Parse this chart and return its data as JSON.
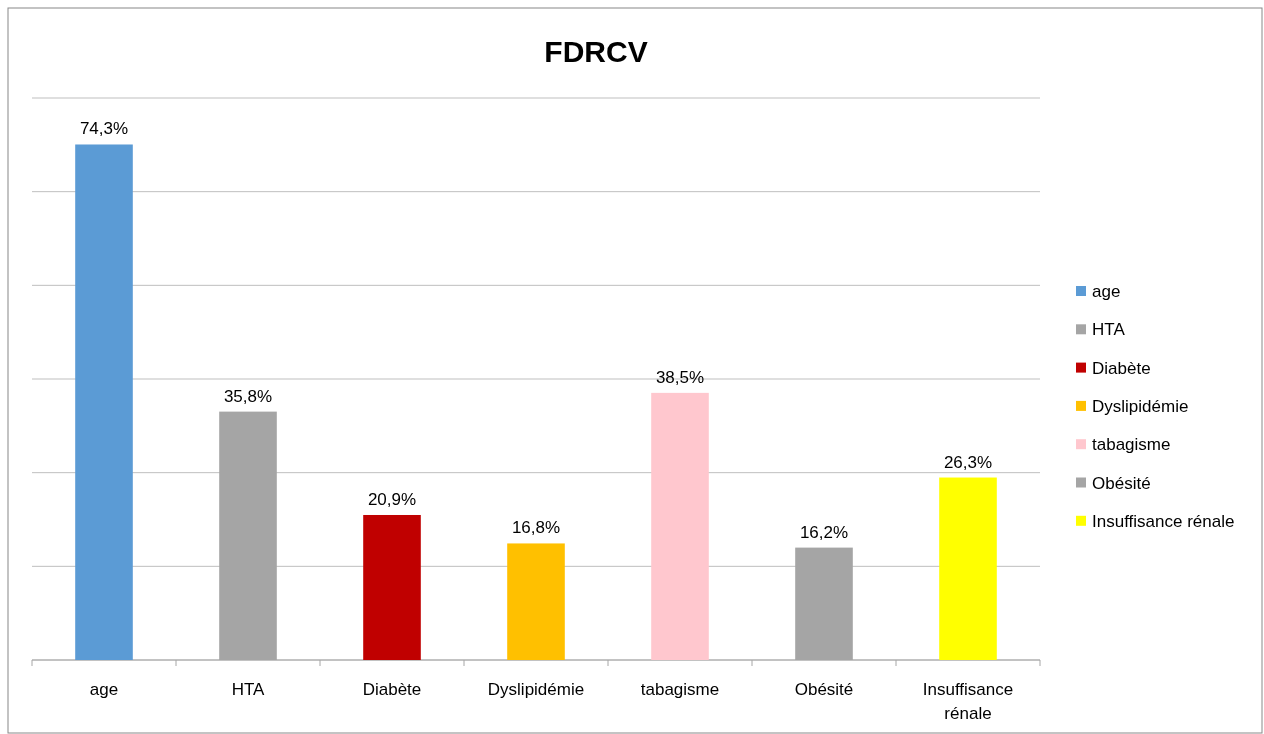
{
  "chart_data": {
    "type": "bar",
    "title": "FDRCV",
    "stacked": true,
    "categories": [
      "age",
      "HTA",
      "Diabète",
      "Dyslipidémie",
      "tabagisme",
      "Obésité",
      "Insuffisance rénale"
    ],
    "series": [
      {
        "name": "age",
        "color": "#5b9bd5",
        "values": [
          74.3,
          null,
          null,
          null,
          null,
          null,
          null
        ],
        "value_labels": [
          "74,3%",
          null,
          null,
          null,
          null,
          null,
          null
        ]
      },
      {
        "name": "HTA",
        "color": "#a5a5a5",
        "values": [
          null,
          35.8,
          null,
          null,
          null,
          null,
          null
        ],
        "value_labels": [
          null,
          "35,8%",
          null,
          null,
          null,
          null,
          null
        ]
      },
      {
        "name": "Diabète",
        "color": "#c00000",
        "values": [
          null,
          null,
          20.9,
          null,
          null,
          null,
          null
        ],
        "value_labels": [
          null,
          null,
          "20,9%",
          null,
          null,
          null,
          null
        ]
      },
      {
        "name": "Dyslipidémie",
        "color": "#ffc000",
        "values": [
          null,
          null,
          null,
          16.8,
          null,
          null,
          null
        ],
        "value_labels": [
          null,
          null,
          null,
          "16,8%",
          null,
          null,
          null
        ]
      },
      {
        "name": "tabagisme",
        "color": "#ffc7ce",
        "values": [
          null,
          null,
          null,
          null,
          38.5,
          null,
          null
        ],
        "value_labels": [
          null,
          null,
          null,
          null,
          "38,5%",
          null,
          null
        ]
      },
      {
        "name": "Obésité",
        "color": "#a5a5a5",
        "values": [
          null,
          null,
          null,
          null,
          null,
          16.2,
          null
        ],
        "value_labels": [
          null,
          null,
          null,
          null,
          null,
          "16,2%",
          null
        ]
      },
      {
        "name": "Insuffisance rénale",
        "color": "#ffff00",
        "values": [
          null,
          null,
          null,
          null,
          null,
          null,
          26.3
        ],
        "value_labels": [
          null,
          null,
          null,
          null,
          null,
          null,
          "26,3%"
        ]
      }
    ],
    "ylim": [
      0,
      81
    ],
    "yticks": [
      {
        "value": 0,
        "label": null
      },
      {
        "value": 13.5,
        "label": null
      },
      {
        "value": 27,
        "label": null
      },
      {
        "value": 40.5,
        "label": null
      },
      {
        "value": 54,
        "label": null
      },
      {
        "value": 67.5,
        "label": null
      },
      {
        "value": 81,
        "label": null
      }
    ],
    "grid": "y",
    "legend": "right",
    "tick_labels": "x"
  }
}
